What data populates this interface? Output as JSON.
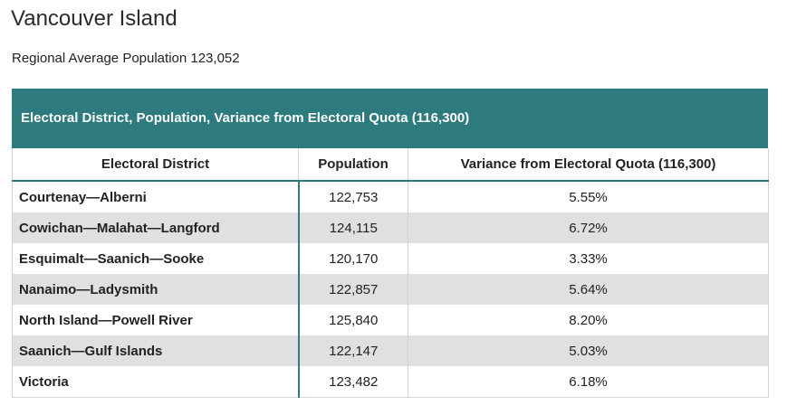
{
  "page": {
    "title": "Vancouver Island",
    "subtitle": "Regional Average Population 123,052"
  },
  "table": {
    "caption": "Electoral District, Population, Variance from Electoral Quota (116,300)",
    "header_color": "#2e7b7f",
    "columns": [
      "Electoral District",
      "Population",
      "Variance from Electoral Quota (116,300)"
    ],
    "rows": [
      [
        "Courtenay—Alberni",
        "122,753",
        "5.55%"
      ],
      [
        "Cowichan—Malahat—Langford",
        "124,115",
        "6.72%"
      ],
      [
        "Esquimalt—Saanich—Sooke",
        "120,170",
        "3.33%"
      ],
      [
        "Nanaimo—Ladysmith",
        "122,857",
        "5.64%"
      ],
      [
        "North Island—Powell River",
        "125,840",
        "8.20%"
      ],
      [
        "Saanich—Gulf Islands",
        "122,147",
        "5.03%"
      ],
      [
        "Victoria",
        "123,482",
        "6.18%"
      ]
    ]
  }
}
